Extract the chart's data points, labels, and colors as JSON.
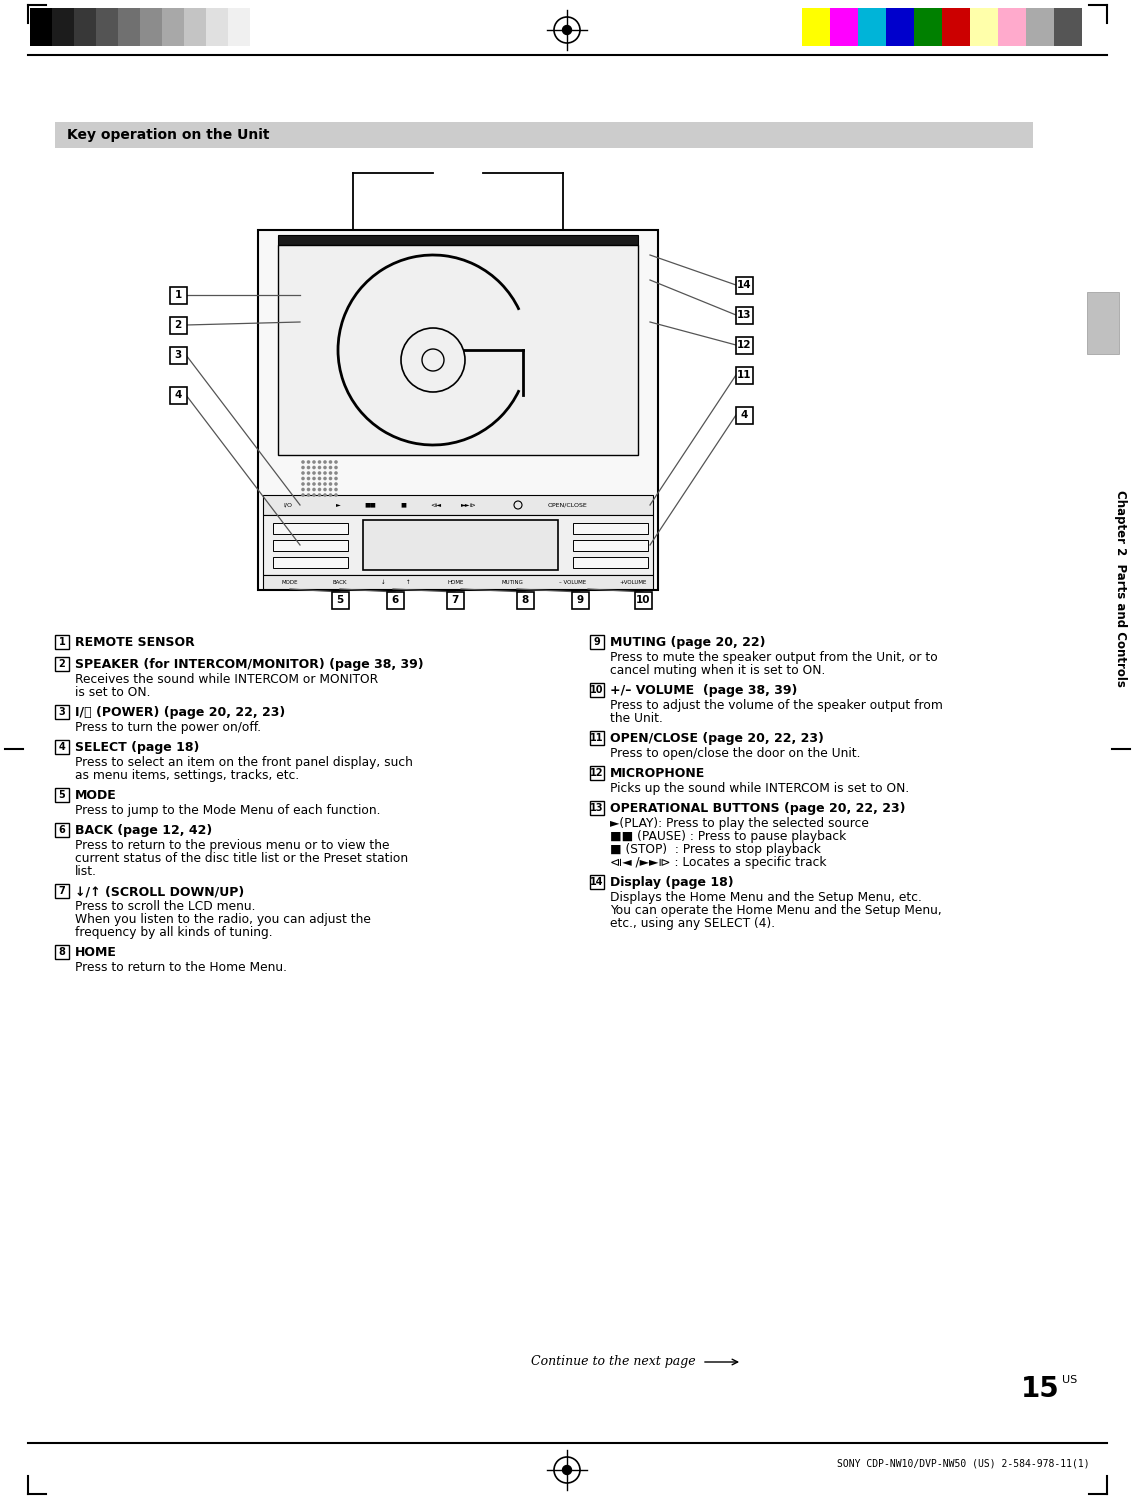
{
  "page_bg": "#ffffff",
  "section_title": "Key operation on the Unit",
  "section_title_bg": "#cccccc",
  "chapter_label": "Chapter 2  Parts and Controls",
  "page_number": "15",
  "footer_text": "SONY CDP-NW10/DVP-NW50 (US) 2-584-978-11(1)",
  "left_items": [
    {
      "num": "1",
      "bold": "REMOTE SENSOR",
      "body": ""
    },
    {
      "num": "2",
      "bold": "SPEAKER (for INTERCOM/MONITOR) (page 38, 39)",
      "body": "Receives the sound while INTERCOM or MONITOR\nis set to ON."
    },
    {
      "num": "3",
      "bold": "I/⌛ (POWER) (page 20, 22, 23)",
      "body": "Press to turn the power on/off."
    },
    {
      "num": "4",
      "bold": "SELECT (page 18)",
      "body": "Press to select an item on the front panel display, such\nas menu items, settings, tracks, etc."
    },
    {
      "num": "5",
      "bold": "MODE",
      "body": "Press to jump to the Mode Menu of each function."
    },
    {
      "num": "6",
      "bold": "BACK (page 12, 42)",
      "body": "Press to return to the previous menu or to view the\ncurrent status of the disc title list or the Preset station\nlist."
    },
    {
      "num": "7",
      "bold": "↓/↑ (SCROLL DOWN/UP)",
      "body": "Press to scroll the LCD menu.\nWhen you listen to the radio, you can adjust the\nfrequency by all kinds of tuning."
    },
    {
      "num": "8",
      "bold": "HOME",
      "body": "Press to return to the Home Menu."
    }
  ],
  "right_items": [
    {
      "num": "9",
      "bold": "MUTING (page 20, 22)",
      "body": "Press to mute the speaker output from the Unit, or to\ncancel muting when it is set to ON."
    },
    {
      "num": "10",
      "bold": "+/– VOLUME  (page 38, 39)",
      "body": "Press to adjust the volume of the speaker output from\nthe Unit."
    },
    {
      "num": "11",
      "bold": "OPEN/CLOSE (page 20, 22, 23)",
      "body": "Press to open/close the door on the Unit."
    },
    {
      "num": "12",
      "bold": "MICROPHONE",
      "body": "Picks up the sound while INTERCOM is set to ON."
    },
    {
      "num": "13",
      "bold": "OPERATIONAL BUTTONS (page 20, 22, 23)",
      "body": "►(PLAY): Press to play the selected source\n■■ (PAUSE) : Press to pause playback\n■ (STOP)  : Press to stop playback\n⧏◄ /►►⧐ : Locates a specific track"
    },
    {
      "num": "14",
      "bold": "Display (page 18)",
      "body": "Displays the Home Menu and the Setup Menu, etc.\nYou can operate the Home Menu and the Setup Menu,\netc., using any SELECT (4)."
    }
  ],
  "color_bar_gray": [
    "#000000",
    "#1c1c1c",
    "#383838",
    "#545454",
    "#707070",
    "#8c8c8c",
    "#a8a8a8",
    "#c4c4c4",
    "#e0e0e0",
    "#f0f0f0",
    "#ffffff"
  ],
  "color_bar_color": [
    "#ffff00",
    "#ff00ff",
    "#00b4d8",
    "#0000cc",
    "#008000",
    "#cc0000",
    "#ffffaa",
    "#ffaacc",
    "#aaaaaa",
    "#555555"
  ]
}
